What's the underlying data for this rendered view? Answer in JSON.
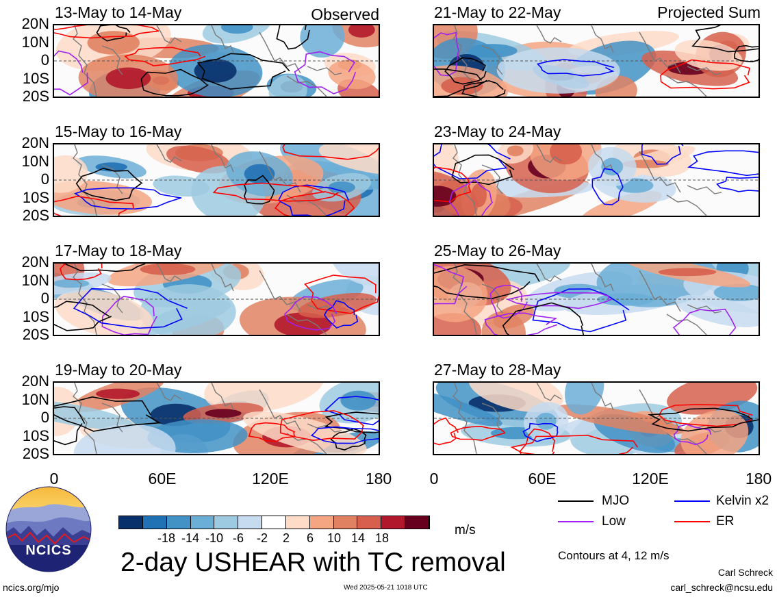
{
  "panels": [
    {
      "title": "13-May to 14-May",
      "label": "Observed",
      "seed": 3
    },
    {
      "title": "21-May to 22-May",
      "label": "Projected Sum",
      "seed": 11
    },
    {
      "title": "15-May to 16-May",
      "label": "",
      "seed": 5
    },
    {
      "title": "23-May to 24-May",
      "label": "",
      "seed": 13
    },
    {
      "title": "17-May to 18-May",
      "label": "",
      "seed": 7
    },
    {
      "title": "25-May to 26-May",
      "label": "",
      "seed": 17
    },
    {
      "title": "19-May to 20-May",
      "label": "",
      "seed": 9
    },
    {
      "title": "27-May to 28-May",
      "label": "",
      "seed": 19
    }
  ],
  "lat_ticks": [
    "20N",
    "10N",
    "0",
    "10S",
    "20S"
  ],
  "lon_ticks": [
    "0",
    "60E",
    "120E",
    "180"
  ],
  "colorbar": {
    "colors": [
      "#08306b",
      "#2171b5",
      "#4292c6",
      "#6baed6",
      "#9ecae1",
      "#c6dbef",
      "#ffffff",
      "#fddbc7",
      "#f4a582",
      "#e08262",
      "#d6604d",
      "#b2182b",
      "#67001f"
    ],
    "ticks": [
      "-18",
      "-14",
      "-10",
      "-6",
      "-2",
      "2",
      "6",
      "10",
      "14",
      "18"
    ],
    "units": "m/s"
  },
  "legend": [
    {
      "label": "MJO",
      "color": "#000000"
    },
    {
      "label": "Kelvin x2",
      "color": "#0000ff"
    },
    {
      "label": "Low",
      "color": "#a020f0"
    },
    {
      "label": "ER",
      "color": "#ff0000"
    }
  ],
  "main_title": "2-day USHEAR with TC removal",
  "contours_note": "Contours at 4, 12 m/s",
  "logo_text": "NCICS",
  "url": "ncics.org/mjo",
  "timestamp": "Wed 2025-05-21 1018 UTC",
  "author": "Carl Schreck",
  "email": "carl_schreck@ncsu.edu"
}
